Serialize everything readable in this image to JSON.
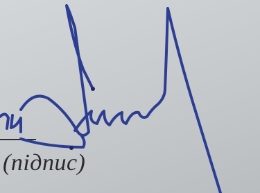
{
  "caption": "(підпис)"
}
